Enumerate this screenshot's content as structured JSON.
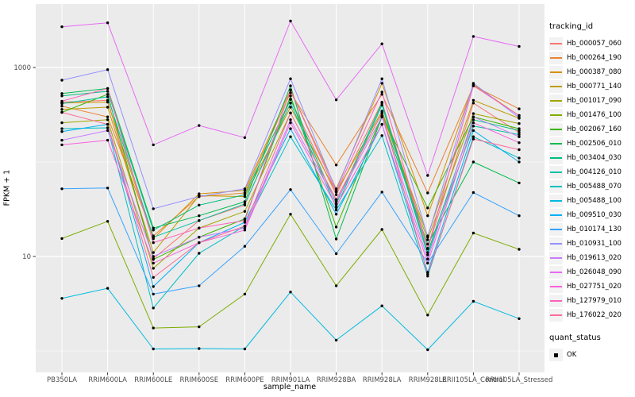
{
  "figure": {
    "background": "#FFFFFF",
    "panel_background": "#EBEBEB",
    "grid_color": "#FFFFFF",
    "tick_color": "#333333",
    "tick_label_color": "#4D4D4D",
    "point_color": "#000000"
  },
  "chart_data": {
    "type": "line",
    "xlabel": "sample_name",
    "ylabel": "FPKM + 1",
    "y_scale": "log10",
    "y_ticks": [
      1000,
      10
    ],
    "y_tick_labels": [
      "1000",
      "10"
    ],
    "y_minor_breaks": [
      100,
      1
    ],
    "ylim": [
      1,
      3200
    ],
    "grid": true,
    "legend_position": "right",
    "legend_title": "tracking_id",
    "quant_legend": {
      "title": "quant_status",
      "items": [
        {
          "label": "OK",
          "marker": "square",
          "color": "#000000"
        }
      ]
    },
    "categories": [
      "PB350LA",
      "RRIM600LA",
      "RRIM600LE",
      "RRIM600SE",
      "RRIM600PE",
      "RRIM901LA",
      "RRIM928BA",
      "RRIM928LA",
      "RRIM928LE",
      "RRII105LA_Control",
      "RRII105LA_Stressed"
    ],
    "series": [
      {
        "name": "Hb_000057_060",
        "color": "#F8766D",
        "values": [
          430,
          450,
          9.5,
          24,
          35,
          460,
          45,
          430,
          12,
          420,
          205
        ]
      },
      {
        "name": "Hb_000264_190",
        "color": "#EA8331",
        "values": [
          390,
          300,
          16.5,
          43,
          47,
          540,
          93,
          520,
          47,
          640,
          365
        ]
      },
      {
        "name": "Hb_000387_080",
        "color": "#D89000",
        "values": [
          420,
          430,
          15.4,
          46,
          50,
          580,
          52,
          680,
          27,
          660,
          310
        ]
      },
      {
        "name": "Hb_000771_140",
        "color": "#C09B00",
        "values": [
          360,
          380,
          11,
          44,
          43,
          380,
          48,
          345,
          16.5,
          450,
          290
        ]
      },
      {
        "name": "Hb_001017_090",
        "color": "#A3A500",
        "values": [
          260,
          280,
          7.5,
          20,
          30,
          330,
          40,
          330,
          15,
          325,
          255
        ]
      },
      {
        "name": "Hb_001476_100",
        "color": "#7CAE00",
        "values": [
          15.5,
          23.5,
          1.75,
          1.8,
          4,
          28,
          4.9,
          19.3,
          2.4,
          17.7,
          11.9
        ]
      },
      {
        "name": "Hb_002067_160",
        "color": "#39B600",
        "values": [
          335,
          520,
          9.3,
          16,
          25,
          500,
          20.5,
          310,
          32.6,
          300,
          225
        ]
      },
      {
        "name": "Hb_002506_010",
        "color": "#00BB4E",
        "values": [
          530,
          600,
          20,
          27,
          38,
          640,
          15.3,
          300,
          13.5,
          100,
          60
        ]
      },
      {
        "name": "Hb_003404_030",
        "color": "#00BF7D",
        "values": [
          500,
          560,
          19,
          35,
          45,
          460,
          36,
          420,
          11,
          280,
          215
        ]
      },
      {
        "name": "Hb_004126_010",
        "color": "#00C1A3",
        "values": [
          415,
          490,
          16,
          24,
          36,
          420,
          33,
          400,
          10.4,
          240,
          195
        ]
      },
      {
        "name": "Hb_005488_070",
        "color": "#00BFC4",
        "values": [
          225,
          230,
          2.85,
          10.8,
          21,
          185,
          31,
          190,
          6.2,
          185,
          110
        ]
      },
      {
        "name": "Hb_005488_100",
        "color": "#00BAE0",
        "values": [
          3.6,
          4.6,
          1.05,
          1.06,
          1.05,
          4.2,
          1.3,
          3,
          1.03,
          3.35,
          2.2
        ]
      },
      {
        "name": "Hb_009510_030",
        "color": "#00B0F6",
        "values": [
          210,
          250,
          4.8,
          14,
          23,
          225,
          28,
          250,
          6.8,
          215,
          100
        ]
      },
      {
        "name": "Hb_010174_130",
        "color": "#35A2FF",
        "values": [
          52,
          53,
          4,
          4.9,
          12.8,
          51,
          10.7,
          48,
          8.5,
          47.5,
          27
        ]
      },
      {
        "name": "Hb_010931_100",
        "color": "#9590FF",
        "values": [
          734,
          950,
          32,
          43,
          52,
          760,
          50,
          760,
          16,
          680,
          295
        ]
      },
      {
        "name": "Hb_019613_020",
        "color": "#C77CFF",
        "values": [
          170,
          215,
          10,
          16,
          20,
          280,
          38,
          300,
          9.4,
          300,
          185
        ]
      },
      {
        "name": "Hb_026048_090",
        "color": "#E76BF3",
        "values": [
          2700,
          2970,
          152,
          243,
          181,
          3100,
          455,
          1780,
          72,
          2130,
          1670
        ]
      },
      {
        "name": "Hb_027751_020",
        "color": "#FA62DB",
        "values": [
          152,
          170,
          8.5,
          14,
          19,
          260,
          34,
          250,
          8.5,
          260,
          160
        ]
      },
      {
        "name": "Hb_127979_010",
        "color": "#FF62BC",
        "values": [
          440,
          600,
          14,
          20,
          24,
          580,
          48,
          550,
          12.2,
          640,
          310
        ]
      },
      {
        "name": "Hb_176022_020",
        "color": "#FF6A98",
        "values": [
          335,
          250,
          6,
          14,
          21,
          330,
          40,
          330,
          6.5,
          175,
          135
        ]
      }
    ]
  }
}
